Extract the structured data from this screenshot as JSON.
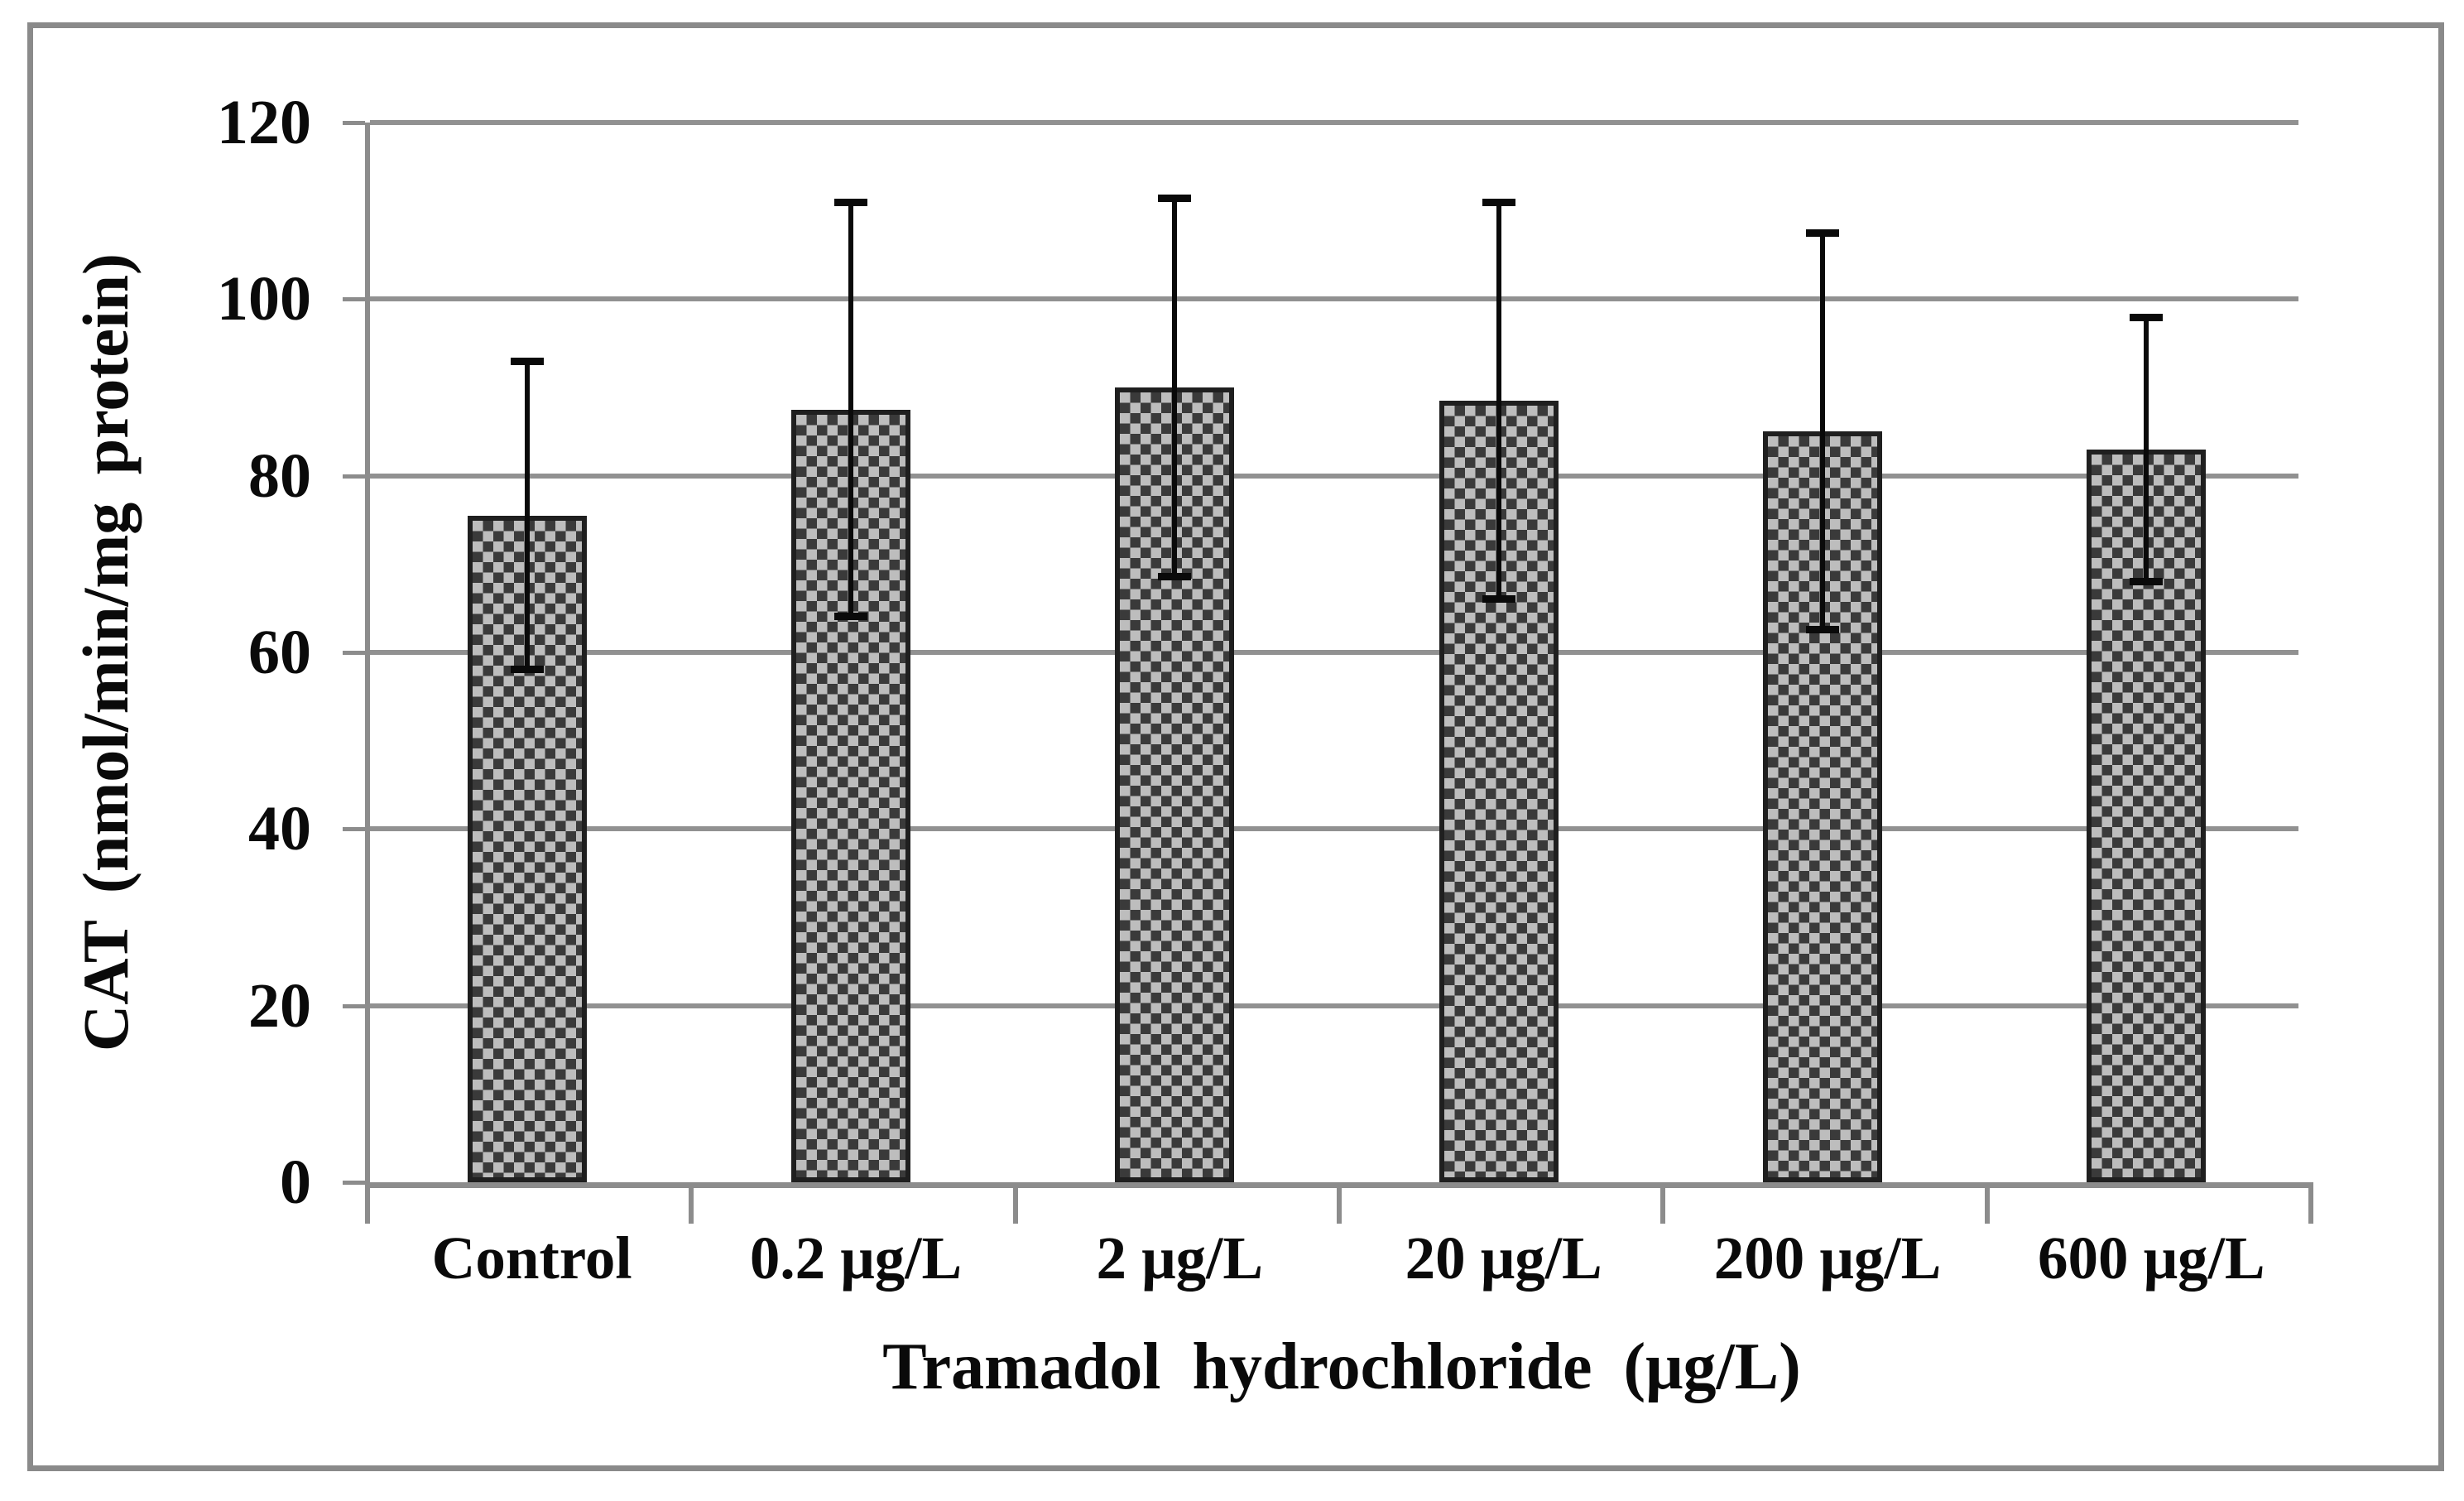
{
  "figure": {
    "background": "#ffffff",
    "frame_color": "#8a8a8a"
  },
  "chart_data": {
    "type": "bar",
    "title": "",
    "xlabel": "Tramadol  hydrochloride  (μg/L)",
    "ylabel": "CAT (nmol/min/mg  protein)",
    "categories": [
      "Control",
      "0.2 μg/L",
      "2 μg/L",
      "20 μg/L",
      "200 μg/L",
      "600 μg/L"
    ],
    "values": [
      75.5,
      87.5,
      90,
      88.5,
      85,
      83
    ],
    "error_bars": [
      17.5,
      23.5,
      21.5,
      22.5,
      22.5,
      15
    ],
    "ylim": [
      0,
      120
    ],
    "ytick_interval": 20,
    "ytick_labels": [
      "0",
      "20",
      "40",
      "60",
      "80",
      "100",
      "120"
    ],
    "grid": "horizontal",
    "legend": "none",
    "bar_fill": "checkerboard-pattern",
    "colors": {
      "grid_line": "#919191",
      "axis_line": "#8c8c8c",
      "bar_check_dark": "#3a3a3a",
      "bar_check_light": "#bdbdbd",
      "bar_border": "#1f1f1f",
      "error_bar": "#0a0a0a",
      "text": "#0a0a0a"
    }
  }
}
